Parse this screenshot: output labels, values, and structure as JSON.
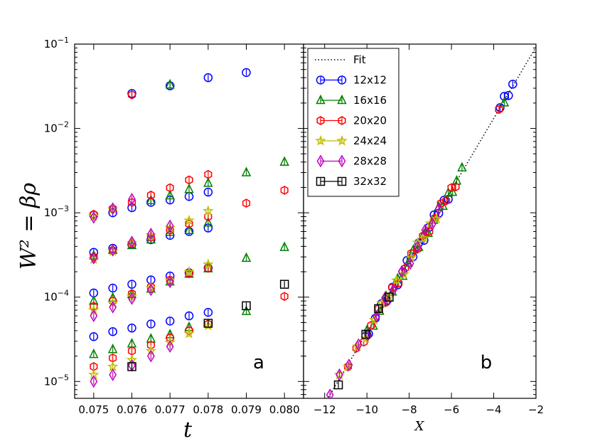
{
  "series_styles": [
    {
      "name": "12x12",
      "color": "#0000ff",
      "marker": "circle"
    },
    {
      "name": "16x16",
      "color": "#008000",
      "marker": "triangle"
    },
    {
      "name": "20x20",
      "color": "#ff0000",
      "marker": "hexagon"
    },
    {
      "name": "24x24",
      "color": "#bfbf00",
      "marker": "star"
    },
    {
      "name": "28x28",
      "color": "#bf00bf",
      "marker": "diamond"
    },
    {
      "name": "32x32",
      "color": "#000000",
      "marker": "square"
    }
  ],
  "chart_data": [
    {
      "type": "scatter",
      "panel_label": "a",
      "xlabel": "t",
      "ylabel": "W² = βρ",
      "xlim": [
        0.0745,
        0.0805
      ],
      "ylim_log10": [
        -5.2,
        -1
      ],
      "yscale": "log",
      "x_ticks": [
        0.075,
        0.076,
        0.077,
        0.078,
        0.079,
        0.08
      ],
      "x_tick_labels": [
        "0.075",
        "0.076",
        "0.077",
        "0.078",
        "0.079",
        "0.080"
      ],
      "y_tick_exponents": [
        -5,
        -4,
        -3,
        -2,
        -1
      ],
      "y_tick_base": "10",
      "series": [
        {
          "name": "12x12",
          "points": [
            [
              0.075,
              3.4e-05
            ],
            [
              0.0755,
              3.9e-05
            ],
            [
              0.076,
              4.3e-05
            ],
            [
              0.0765,
              4.8e-05
            ],
            [
              0.077,
              5.2e-05
            ],
            [
              0.0775,
              6e-05
            ],
            [
              0.078,
              6.6e-05
            ],
            [
              0.075,
              0.000112
            ],
            [
              0.0755,
              0.000128
            ],
            [
              0.076,
              0.000142
            ],
            [
              0.0765,
              0.00016
            ],
            [
              0.077,
              0.000178
            ],
            [
              0.0775,
              0.000195
            ],
            [
              0.078,
              0.000222
            ],
            [
              0.075,
              0.00034
            ],
            [
              0.0755,
              0.00038
            ],
            [
              0.076,
              0.00042
            ],
            [
              0.0765,
              0.00048
            ],
            [
              0.077,
              0.00054
            ],
            [
              0.0775,
              0.0006
            ],
            [
              0.078,
              0.00066
            ],
            [
              0.075,
              0.00094
            ],
            [
              0.0755,
              0.001
            ],
            [
              0.076,
              0.00115
            ],
            [
              0.0765,
              0.00133
            ],
            [
              0.077,
              0.00142
            ],
            [
              0.0775,
              0.00156
            ],
            [
              0.078,
              0.00176
            ],
            [
              0.076,
              0.026
            ],
            [
              0.077,
              0.032
            ],
            [
              0.078,
              0.04
            ],
            [
              0.079,
              0.046
            ]
          ]
        },
        {
          "name": "16x16",
          "points": [
            [
              0.075,
              2.1e-05
            ],
            [
              0.0755,
              2.4e-05
            ],
            [
              0.076,
              2.8e-05
            ],
            [
              0.0765,
              3.2e-05
            ],
            [
              0.077,
              3.6e-05
            ],
            [
              0.0775,
              4.4e-05
            ],
            [
              0.079,
              6.8e-05
            ],
            [
              0.075,
              9e-05
            ],
            [
              0.0755,
              9.8e-05
            ],
            [
              0.076,
              0.000108
            ],
            [
              0.0765,
              0.000125
            ],
            [
              0.077,
              0.000152
            ],
            [
              0.0775,
              0.000188
            ],
            [
              0.078,
              0.000218
            ],
            [
              0.079,
              0.00029
            ],
            [
              0.08,
              0.00039
            ],
            [
              0.075,
              0.00031
            ],
            [
              0.0755,
              0.00036
            ],
            [
              0.076,
              0.00041
            ],
            [
              0.0765,
              0.00048
            ],
            [
              0.077,
              0.00059
            ],
            [
              0.0775,
              0.00062
            ],
            [
              0.078,
              0.00076
            ],
            [
              0.0765,
              0.0014
            ],
            [
              0.077,
              0.0016
            ],
            [
              0.0775,
              0.0019
            ],
            [
              0.078,
              0.00225
            ],
            [
              0.079,
              0.003
            ],
            [
              0.08,
              0.004
            ],
            [
              0.077,
              0.033
            ]
          ]
        },
        {
          "name": "20x20",
          "points": [
            [
              0.075,
              1.5e-05
            ],
            [
              0.0755,
              1.9e-05
            ],
            [
              0.076,
              2.3e-05
            ],
            [
              0.0765,
              2.7e-05
            ],
            [
              0.077,
              3.3e-05
            ],
            [
              0.0775,
              4e-05
            ],
            [
              0.078,
              4.8e-05
            ],
            [
              0.075,
              7.8e-05
            ],
            [
              0.0755,
              9e-05
            ],
            [
              0.076,
              0.00011
            ],
            [
              0.0765,
              0.000132
            ],
            [
              0.077,
              0.00016
            ],
            [
              0.0775,
              0.00019
            ],
            [
              0.078,
              0.00022
            ],
            [
              0.08,
              0.000102
            ],
            [
              0.075,
              0.0003
            ],
            [
              0.0755,
              0.00036
            ],
            [
              0.076,
              0.00043
            ],
            [
              0.0765,
              0.00051
            ],
            [
              0.077,
              0.00062
            ],
            [
              0.0775,
              0.00074
            ],
            [
              0.078,
              0.0009
            ],
            [
              0.079,
              0.0013
            ],
            [
              0.08,
              0.00185
            ],
            [
              0.075,
              0.00096
            ],
            [
              0.0755,
              0.00112
            ],
            [
              0.076,
              0.00133
            ],
            [
              0.0765,
              0.00162
            ],
            [
              0.077,
              0.00198
            ],
            [
              0.0775,
              0.00245
            ],
            [
              0.078,
              0.00285
            ],
            [
              0.076,
              0.025
            ]
          ]
        },
        {
          "name": "24x24",
          "points": [
            [
              0.075,
              1.2e-05
            ],
            [
              0.0755,
              1.5e-05
            ],
            [
              0.076,
              1.8e-05
            ],
            [
              0.0765,
              2.3e-05
            ],
            [
              0.077,
              2.9e-05
            ],
            [
              0.0775,
              3.7e-05
            ],
            [
              0.078,
              4.6e-05
            ],
            [
              0.075,
              7e-05
            ],
            [
              0.0755,
              8.5e-05
            ],
            [
              0.076,
              0.000102
            ],
            [
              0.0765,
              0.000128
            ],
            [
              0.077,
              0.000158
            ],
            [
              0.0775,
              0.0002
            ],
            [
              0.078,
              0.000245
            ],
            [
              0.075,
              0.00028
            ],
            [
              0.0755,
              0.00035
            ],
            [
              0.076,
              0.00044
            ],
            [
              0.0765,
              0.00054
            ],
            [
              0.077,
              0.00066
            ],
            [
              0.0775,
              0.00081
            ],
            [
              0.078,
              0.00105
            ],
            [
              0.075,
              0.00091
            ],
            [
              0.0755,
              0.0011
            ]
          ]
        },
        {
          "name": "28x28",
          "points": [
            [
              0.075,
              1e-05
            ],
            [
              0.0755,
              1.2e-05
            ],
            [
              0.076,
              1.55e-05
            ],
            [
              0.0765,
              2e-05
            ],
            [
              0.077,
              2.6e-05
            ],
            [
              0.075,
              6e-05
            ],
            [
              0.0755,
              7.6e-05
            ],
            [
              0.076,
              9.6e-05
            ],
            [
              0.0765,
              0.000122
            ],
            [
              0.077,
              0.000152
            ],
            [
              0.075,
              0.00029
            ],
            [
              0.0755,
              0.00036
            ],
            [
              0.076,
              0.00045
            ],
            [
              0.0765,
              0.00056
            ],
            [
              0.077,
              0.0007
            ],
            [
              0.075,
              0.00088
            ],
            [
              0.0755,
              0.00112
            ],
            [
              0.076,
              0.00145
            ]
          ]
        },
        {
          "name": "32x32",
          "points": [
            [
              0.076,
              1.5e-05
            ],
            [
              0.078,
              4.9e-05
            ],
            [
              0.079,
              7.9e-05
            ],
            [
              0.08,
              0.000142
            ]
          ]
        }
      ]
    },
    {
      "type": "scatter",
      "panel_label": "b",
      "xlabel": "X",
      "xlim": [
        -13,
        -2
      ],
      "ylim_log10": [
        -5.2,
        -1
      ],
      "yscale": "log",
      "x_ticks": [
        -12,
        -10,
        -8,
        -6,
        -4,
        -2
      ],
      "x_tick_labels": [
        "−12",
        "−10",
        "−8",
        "−6",
        "−4",
        "−2"
      ],
      "fit_line": {
        "name": "Fit",
        "x": [
          -12.2,
          -1.8
        ],
        "log10_y": [
          -5.35,
          -0.95
        ]
      },
      "legend": {
        "location": "upper-left",
        "entries": [
          "Fit",
          "12x12",
          "16x16",
          "20x20",
          "24x24",
          "28x28",
          "32x32"
        ]
      },
      "series": [
        {
          "name": "12x12",
          "x": [
            -9.92,
            -9.6,
            -9.31,
            -9.04,
            -8.79,
            -8.55,
            -8.3,
            -8.1,
            -7.82,
            -7.55,
            -7.3,
            -7.05,
            -6.82,
            -6.6,
            -6.35,
            -6.15,
            -3.7,
            -3.5,
            -3.3,
            -3.1
          ]
        },
        {
          "name": "16x16",
          "x": [
            -10.0,
            -9.7,
            -9.4,
            -9.1,
            -8.8,
            -8.55,
            -8.3,
            -8.05,
            -7.8,
            -7.55,
            -7.3,
            -7.1,
            -6.85,
            -6.6,
            -6.4,
            -6.15,
            -5.95,
            -5.75,
            -5.5,
            -3.5
          ]
        },
        {
          "name": "20x20",
          "x": [
            -10.9,
            -10.5,
            -10.15,
            -9.8,
            -9.45,
            -9.1,
            -8.8,
            -8.5,
            -8.2,
            -7.9,
            -7.6,
            -7.35,
            -7.05,
            -6.8,
            -6.5,
            -6.25,
            -6.0,
            -5.8,
            -3.75
          ]
        },
        {
          "name": "24x24",
          "x": [
            -11.3,
            -10.9,
            -10.45,
            -10.05,
            -9.65,
            -9.3,
            -8.95,
            -8.6,
            -8.25,
            -7.9,
            -7.6,
            -7.3,
            -7.0,
            -6.7
          ]
        },
        {
          "name": "28x28",
          "x": [
            -11.75,
            -11.3,
            -10.85,
            -10.4,
            -9.95,
            -9.55,
            -9.15,
            -8.75,
            -8.35,
            -7.95,
            -7.6,
            -7.25,
            -6.9,
            -6.6
          ]
        },
        {
          "name": "32x32",
          "x": [
            -11.35,
            -10.05,
            -9.45,
            -8.95
          ]
        }
      ]
    }
  ]
}
